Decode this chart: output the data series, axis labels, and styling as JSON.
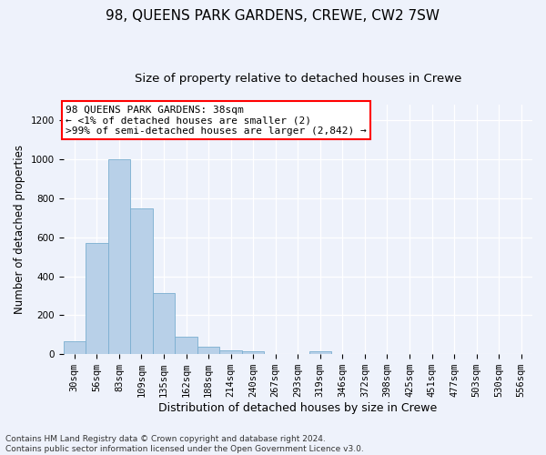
{
  "title": "98, QUEENS PARK GARDENS, CREWE, CW2 7SW",
  "subtitle": "Size of property relative to detached houses in Crewe",
  "xlabel": "Distribution of detached houses by size in Crewe",
  "ylabel": "Number of detached properties",
  "bar_color": "#b8d0e8",
  "bar_edge_color": "#7aaed0",
  "categories": [
    "30sqm",
    "56sqm",
    "83sqm",
    "109sqm",
    "135sqm",
    "162sqm",
    "188sqm",
    "214sqm",
    "240sqm",
    "267sqm",
    "293sqm",
    "319sqm",
    "346sqm",
    "372sqm",
    "398sqm",
    "425sqm",
    "451sqm",
    "477sqm",
    "503sqm",
    "530sqm",
    "556sqm"
  ],
  "values": [
    65,
    570,
    1000,
    750,
    315,
    90,
    38,
    22,
    14,
    0,
    0,
    14,
    0,
    0,
    0,
    0,
    0,
    0,
    0,
    0,
    0
  ],
  "ylim": [
    0,
    1280
  ],
  "yticks": [
    0,
    200,
    400,
    600,
    800,
    1000,
    1200
  ],
  "annotation_text": "98 QUEENS PARK GARDENS: 38sqm\n← <1% of detached houses are smaller (2)\n>99% of semi-detached houses are larger (2,842) →",
  "footer_line1": "Contains HM Land Registry data © Crown copyright and database right 2024.",
  "footer_line2": "Contains public sector information licensed under the Open Government Licence v3.0.",
  "background_color": "#eef2fb",
  "plot_bg_color": "#eef2fb",
  "title_fontsize": 11,
  "subtitle_fontsize": 9.5,
  "ylabel_fontsize": 8.5,
  "xlabel_fontsize": 9,
  "annotation_fontsize": 8,
  "tick_fontsize": 7.5,
  "footer_fontsize": 6.5
}
